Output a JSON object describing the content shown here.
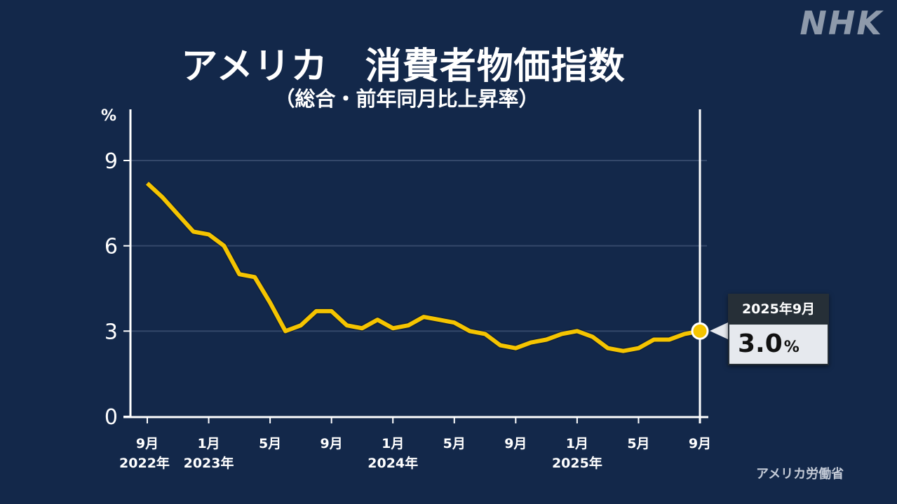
{
  "header": {
    "title": "アメリカ　消費者物価指数",
    "subtitle": "（総合・前年同月比上昇率）",
    "logo": "NHK"
  },
  "source": "アメリカ労働省",
  "tooltip": {
    "date": "2025年9月",
    "value": "3.0",
    "unit": "%"
  },
  "colors": {
    "background": "#13284a",
    "line": "#f5c400",
    "grid": "#34486a",
    "axis": "#ffffff"
  },
  "chart_data": {
    "type": "line",
    "title": "アメリカ　消費者物価指数",
    "subtitle": "（総合・前年同月比上昇率）",
    "xlabel": "",
    "ylabel": "%",
    "ylim": [
      0,
      10
    ],
    "yticks": [
      0,
      3,
      6,
      9
    ],
    "grid": true,
    "legend": null,
    "x_tick_labels": [
      {
        "month": "9月",
        "year": "2022年"
      },
      {
        "month": "1月",
        "year": "2023年"
      },
      {
        "month": "5月",
        "year": ""
      },
      {
        "month": "9月",
        "year": ""
      },
      {
        "month": "1月",
        "year": "2024年"
      },
      {
        "month": "5月",
        "year": ""
      },
      {
        "month": "9月",
        "year": ""
      },
      {
        "month": "1月",
        "year": "2025年"
      },
      {
        "month": "5月",
        "year": ""
      },
      {
        "month": "9月",
        "year": ""
      }
    ],
    "x": [
      "2022-09",
      "2022-10",
      "2022-11",
      "2022-12",
      "2023-01",
      "2023-02",
      "2023-03",
      "2023-04",
      "2023-05",
      "2023-06",
      "2023-07",
      "2023-08",
      "2023-09",
      "2023-10",
      "2023-11",
      "2023-12",
      "2024-01",
      "2024-02",
      "2024-03",
      "2024-04",
      "2024-05",
      "2024-06",
      "2024-07",
      "2024-08",
      "2024-09",
      "2024-10",
      "2024-11",
      "2024-12",
      "2025-01",
      "2025-02",
      "2025-03",
      "2025-04",
      "2025-05",
      "2025-06",
      "2025-07",
      "2025-08",
      "2025-09"
    ],
    "series": [
      {
        "name": "消費者物価指数 前年同月比",
        "values": [
          8.2,
          7.7,
          7.1,
          6.5,
          6.4,
          6.0,
          5.0,
          4.9,
          4.0,
          3.0,
          3.2,
          3.7,
          3.7,
          3.2,
          3.1,
          3.4,
          3.1,
          3.2,
          3.5,
          3.4,
          3.3,
          3.0,
          2.9,
          2.5,
          2.4,
          2.6,
          2.7,
          2.9,
          3.0,
          2.8,
          2.4,
          2.3,
          2.4,
          2.7,
          2.7,
          2.9,
          3.0
        ]
      }
    ],
    "annotations": [
      {
        "x": "2025-09",
        "label": "2025年9月",
        "value": "3.0%"
      }
    ]
  }
}
